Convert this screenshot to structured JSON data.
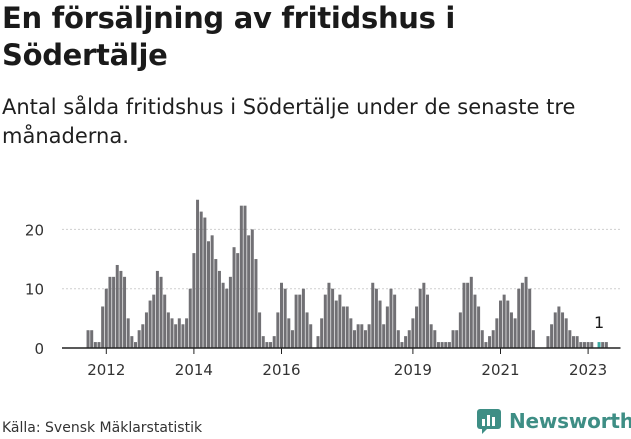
{
  "title": "En försäljning av fritidshus i Södertälje",
  "subtitle": "Antal sålda fritidshus i Södertälje under de senaste tre månaderna.",
  "source": "Källa: Svensk Mäklarstatistik",
  "brand": "Newsworthy",
  "colors": {
    "bar": "#717074",
    "highlight": "#3aa8a0",
    "axis": "#222222",
    "grid": "#cfcfcf",
    "brand": "#3e8e85"
  },
  "chart_data": {
    "type": "bar",
    "title": "En försäljning av fritidshus i Södertälje",
    "xlabel": "",
    "ylabel": "",
    "ylim": [
      0,
      27
    ],
    "y_ticks": [
      0,
      10,
      20
    ],
    "start": "2011-01",
    "x_tick_labels": [
      {
        "label": "2012",
        "month_index": 12
      },
      {
        "label": "2014",
        "month_index": 36
      },
      {
        "label": "2016",
        "month_index": 60
      },
      {
        "label": "2019",
        "month_index": 96
      },
      {
        "label": "2021",
        "month_index": 120
      },
      {
        "label": "2023",
        "month_index": 144
      }
    ],
    "values": [
      0,
      0,
      0,
      0,
      0,
      0,
      0,
      3,
      3,
      1,
      1,
      7,
      10,
      12,
      12,
      14,
      13,
      12,
      5,
      2,
      1,
      3,
      4,
      6,
      8,
      9,
      13,
      12,
      9,
      6,
      5,
      4,
      5,
      4,
      5,
      10,
      16,
      25,
      23,
      22,
      18,
      19,
      15,
      13,
      11,
      10,
      12,
      17,
      16,
      24,
      24,
      19,
      20,
      15,
      6,
      2,
      1,
      1,
      2,
      6,
      11,
      10,
      5,
      3,
      9,
      9,
      10,
      6,
      4,
      0,
      2,
      5,
      9,
      11,
      10,
      8,
      9,
      7,
      7,
      5,
      3,
      4,
      4,
      3,
      4,
      11,
      10,
      8,
      4,
      7,
      10,
      9,
      3,
      1,
      2,
      3,
      5,
      7,
      10,
      11,
      9,
      4,
      3,
      1,
      1,
      1,
      1,
      3,
      3,
      6,
      11,
      11,
      12,
      9,
      7,
      3,
      1,
      2,
      3,
      5,
      8,
      9,
      8,
      6,
      5,
      10,
      11,
      12,
      10,
      3,
      0,
      0,
      0,
      2,
      4,
      6,
      7,
      6,
      5,
      3,
      2,
      2,
      1,
      1,
      1,
      1,
      0,
      1,
      1,
      1
    ],
    "highlight": {
      "index": 147,
      "value": 1,
      "label": "1"
    }
  }
}
